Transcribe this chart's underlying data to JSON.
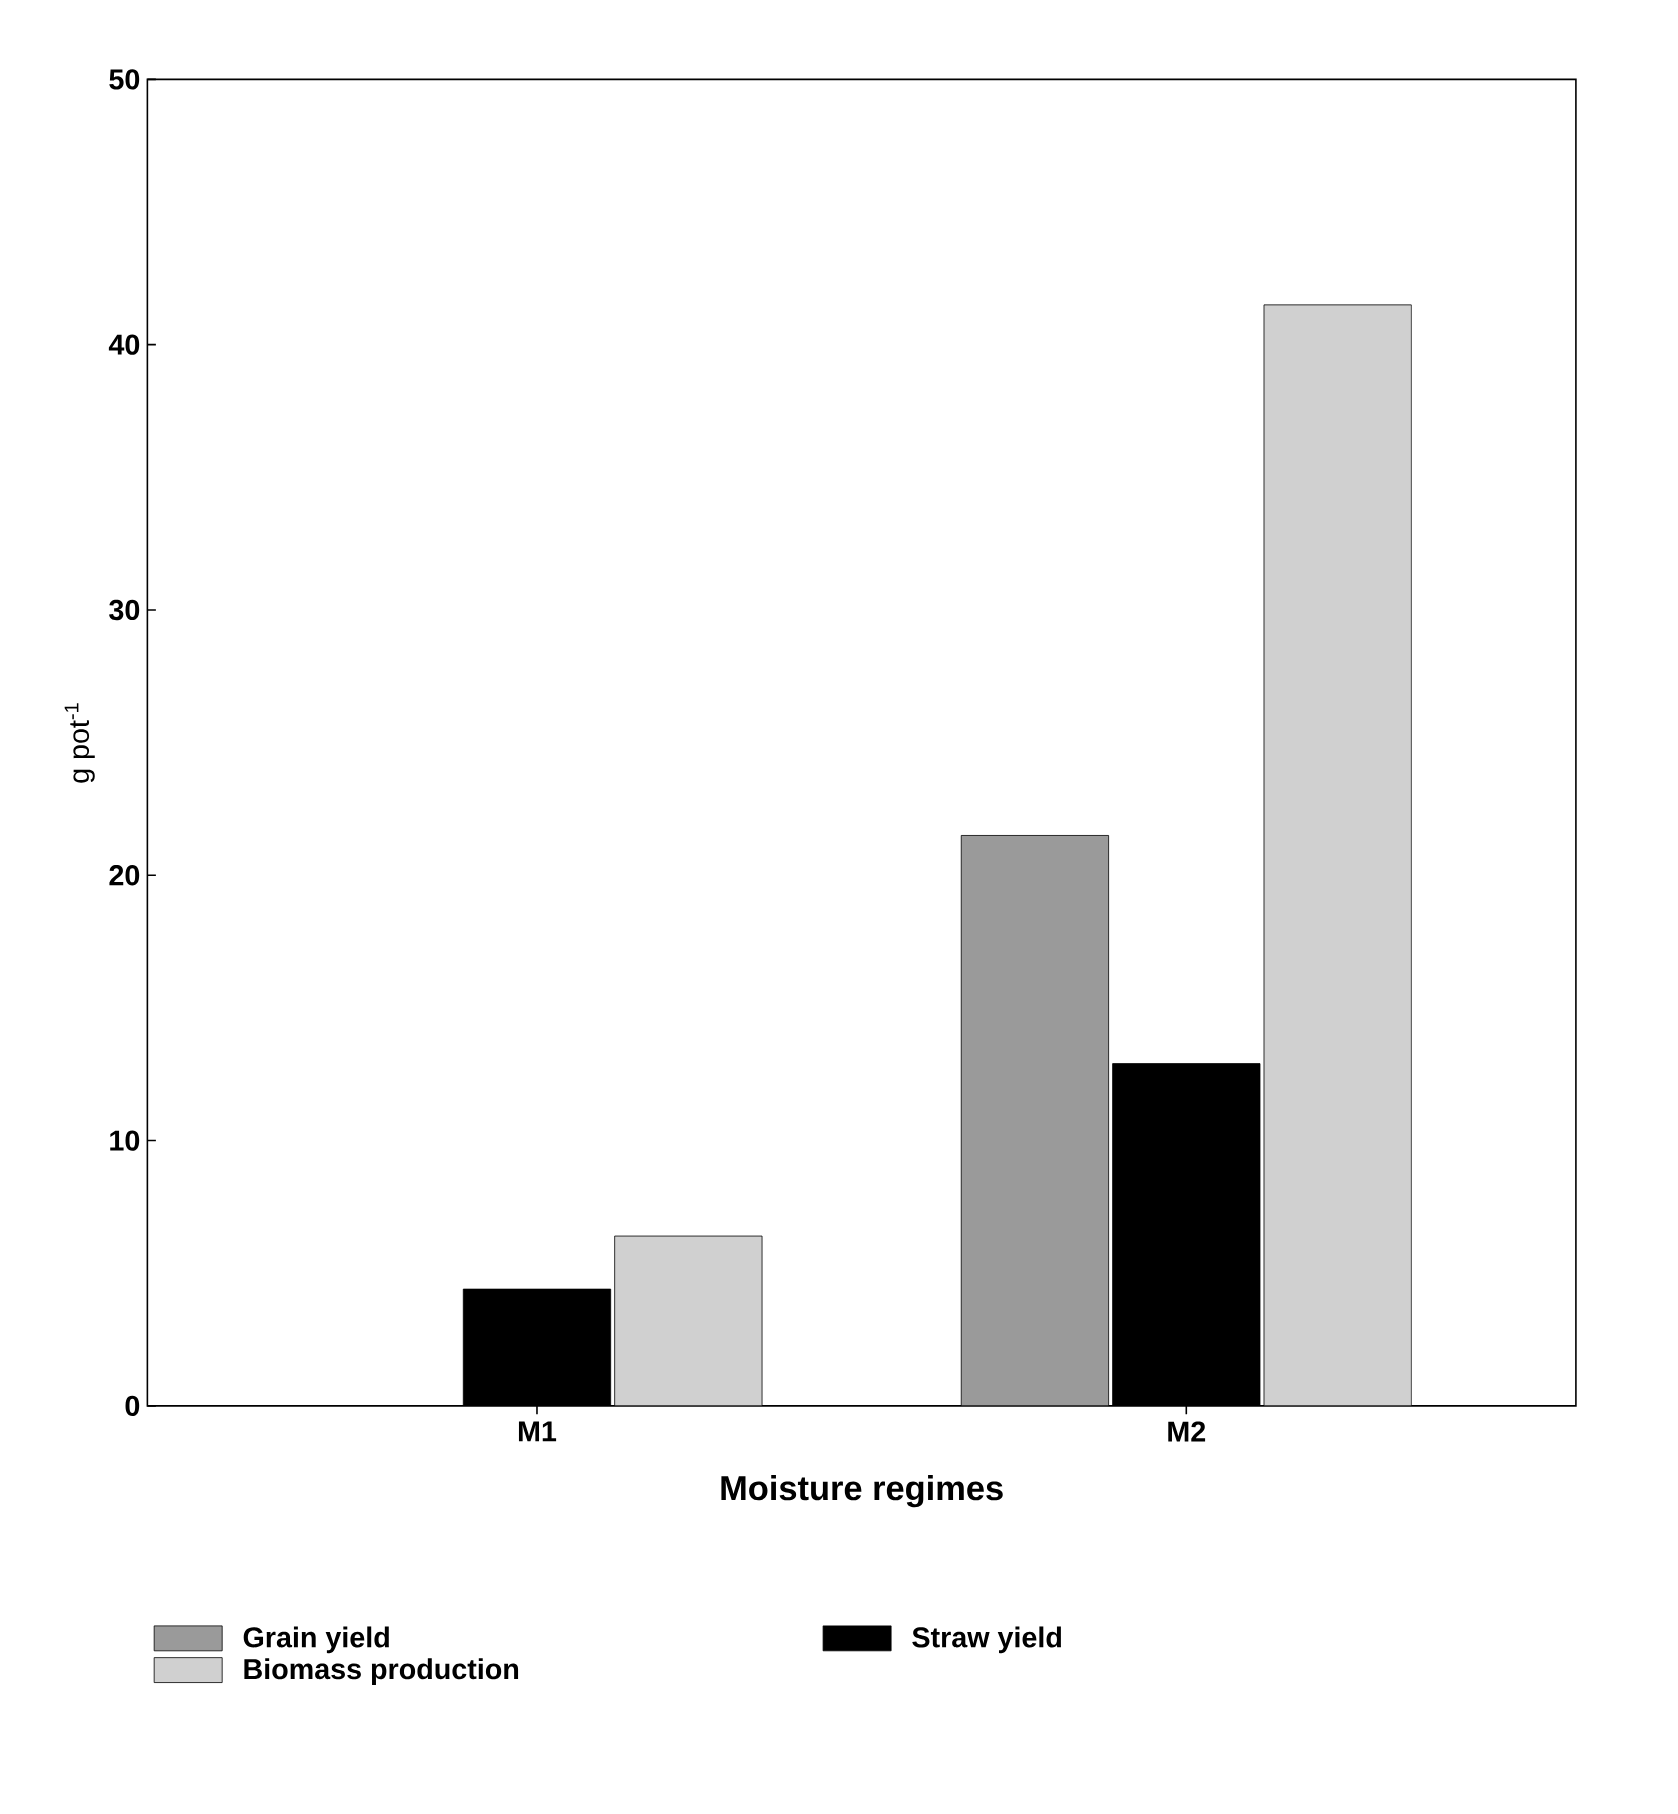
{
  "chart_data": {
    "type": "bar",
    "xlabel": "Moisture regimes",
    "ylabel": "g pot$^{-1}$",
    "categories": [
      "M1",
      "M2"
    ],
    "series": [
      {
        "name": "Grain yield",
        "color": "#9a9a9a",
        "values": [
          null,
          21.5
        ]
      },
      {
        "name": "Straw yield",
        "color": "#000000",
        "values": [
          4.4,
          12.9
        ]
      },
      {
        "name": "Biomass production",
        "color": "#d0d0d0",
        "values": [
          6.4,
          41.5
        ]
      }
    ],
    "ylim": [
      0,
      50
    ],
    "yticks": [
      0,
      10,
      20,
      30,
      40,
      50
    ],
    "legend": "bottom"
  }
}
